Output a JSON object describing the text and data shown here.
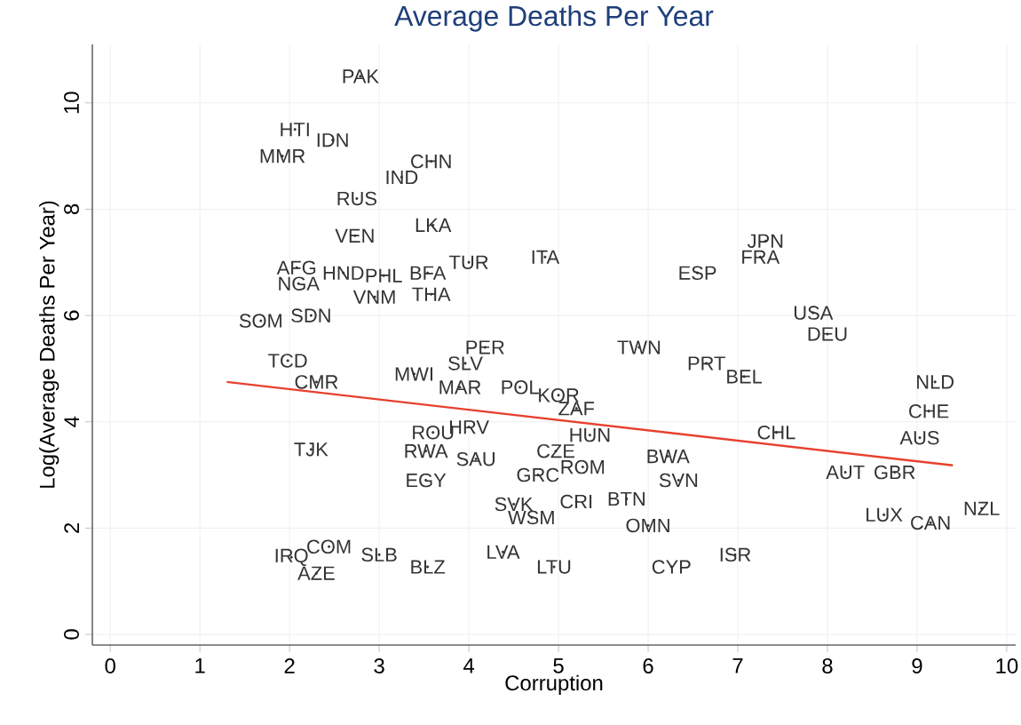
{
  "chart_data": {
    "type": "scatter",
    "title": "Average Deaths Per Year",
    "xlabel": "Corruption",
    "ylabel": "Log(Average Deaths Per Year)",
    "xlim": [
      -0.2,
      10.1
    ],
    "ylim": [
      -0.2,
      11.1
    ],
    "xticks": [
      0,
      1,
      2,
      3,
      4,
      5,
      6,
      7,
      8,
      9,
      10
    ],
    "yticks": [
      0,
      2,
      4,
      6,
      8,
      10
    ],
    "grid": true,
    "series": [
      {
        "color": "#333333",
        "marker": "circle",
        "x": [
          2.79,
          2.06,
          2.48,
          1.92,
          3.58,
          3.25,
          2.75,
          2.73,
          3.6,
          4.0,
          4.85,
          7.31,
          7.25,
          6.55,
          2.08,
          2.1,
          2.6,
          3.05,
          3.54,
          2.95,
          3.58,
          1.68,
          2.24,
          7.84,
          8.0,
          5.9,
          6.65,
          7.07,
          9.2,
          9.13,
          9.03,
          8.2,
          8.75,
          7.43,
          8.63,
          9.15,
          9.72,
          5.2,
          5.0,
          4.57,
          5.35,
          4.97,
          6.22,
          6.34,
          5.27,
          4.77,
          5.76,
          5.2,
          4.5,
          4.7,
          6.0,
          6.97,
          6.26,
          4.95,
          4.38,
          3.6,
          4.0,
          4.08,
          3.52,
          3.9,
          3.96,
          3.52,
          3.54,
          3.0,
          2.44,
          2.02,
          2.3,
          1.98,
          2.3,
          2.24,
          3.39,
          4.18
        ],
        "values": [
          10.5,
          9.5,
          9.3,
          9.0,
          8.9,
          8.6,
          8.2,
          7.5,
          7.7,
          7.0,
          7.1,
          7.4,
          7.1,
          6.8,
          6.9,
          6.6,
          6.8,
          6.75,
          6.8,
          6.35,
          6.4,
          5.9,
          6.0,
          6.05,
          5.65,
          5.4,
          5.1,
          4.85,
          4.75,
          4.2,
          3.7,
          3.05,
          3.05,
          3.8,
          2.25,
          2.1,
          2.37,
          4.25,
          4.5,
          4.65,
          3.75,
          3.45,
          3.35,
          2.9,
          3.15,
          3.0,
          2.55,
          2.5,
          2.45,
          2.2,
          2.05,
          1.5,
          1.27,
          1.27,
          1.55,
          3.8,
          3.9,
          3.3,
          3.45,
          4.65,
          5.1,
          2.9,
          1.27,
          1.5,
          1.65,
          1.45,
          1.15,
          5.15,
          4.75,
          3.48,
          4.9,
          5.4
        ],
        "value_labels": [
          "PAK",
          "HTI",
          "IDN",
          "MMR",
          "CHN",
          "IND",
          "RUS",
          "VEN",
          "LKA",
          "TUR",
          "ITA",
          "JPN",
          "FRA",
          "ESP",
          "AFG",
          "NGA",
          "HND",
          "PHL",
          "BFA",
          "VNM",
          "THA",
          "SOM",
          "SDN",
          "USA",
          "DEU",
          "TWN",
          "PRT",
          "BEL",
          "NLD",
          "CHE",
          "AUS",
          "AUT",
          "GBR",
          "CHL",
          "LUX",
          "CAN",
          "NZL",
          "ZAF",
          "KOR",
          "POL",
          "HUN",
          "CZE",
          "BWA",
          "SVN",
          "ROM",
          "GRC",
          "BTN",
          "CRI",
          "SVK",
          "WSM",
          "OMN",
          "ISR",
          "CYP",
          "LTU",
          "LVA",
          "ROU",
          "HRV",
          "SAU",
          "RWA",
          "MAR",
          "SLV",
          "EGY",
          "BLZ",
          "SLB",
          "COM",
          "IRQ",
          "AZE",
          "TCD",
          "CMR",
          "TJK",
          "MWI",
          "PER"
        ]
      },
      {
        "type": "line",
        "color": "#e8402e",
        "x": [
          1.3,
          9.4
        ],
        "values": [
          4.75,
          3.18
        ]
      }
    ]
  }
}
